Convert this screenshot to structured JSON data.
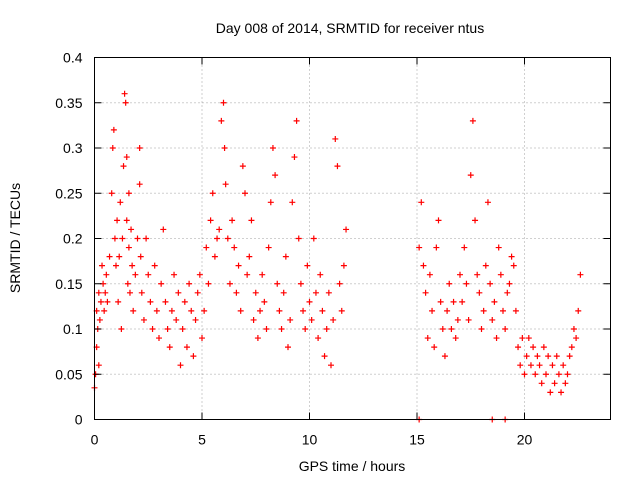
{
  "chart_data": {
    "type": "scatter",
    "title": "Day 008 of 2014, SRMTID for receiver ntus",
    "xlabel": "GPS time / hours",
    "ylabel": "SRMTID / TECUs",
    "xlim": [
      0,
      24
    ],
    "ylim": [
      0,
      0.4
    ],
    "xticks": [
      0,
      5,
      10,
      15,
      20
    ],
    "xtick_labels": [
      "0",
      "5",
      "10",
      "15",
      "20"
    ],
    "yticks": [
      0,
      0.05,
      0.1,
      0.15,
      0.2,
      0.25,
      0.3,
      0.35,
      0.4
    ],
    "ytick_labels": [
      "0",
      "0.05",
      "0.1",
      "0.15",
      "0.2",
      "0.25",
      "0.3",
      "0.35",
      "0.4"
    ],
    "grid": true,
    "series": [
      {
        "name": "SRMTID",
        "marker": "+",
        "color": "#ff0000",
        "x": [
          0.0,
          0.05,
          0.1,
          0.1,
          0.15,
          0.2,
          0.2,
          0.25,
          0.3,
          0.35,
          0.4,
          0.45,
          0.5,
          0.55,
          0.6,
          0.7,
          0.8,
          0.85,
          0.9,
          0.95,
          1.0,
          1.05,
          1.1,
          1.15,
          1.2,
          1.25,
          1.3,
          1.35,
          1.4,
          1.45,
          1.5,
          1.5,
          1.55,
          1.6,
          1.6,
          1.65,
          1.7,
          1.75,
          1.8,
          1.9,
          2.0,
          2.1,
          2.1,
          2.15,
          2.2,
          2.3,
          2.4,
          2.5,
          2.6,
          2.7,
          2.8,
          2.9,
          3.0,
          3.1,
          3.2,
          3.3,
          3.4,
          3.5,
          3.6,
          3.7,
          3.8,
          3.9,
          4.0,
          4.1,
          4.2,
          4.3,
          4.4,
          4.5,
          4.6,
          4.7,
          4.8,
          4.9,
          5.0,
          5.1,
          5.2,
          5.3,
          5.4,
          5.5,
          5.6,
          5.7,
          5.8,
          5.9,
          6.0,
          6.05,
          6.1,
          6.2,
          6.3,
          6.4,
          6.5,
          6.6,
          6.7,
          6.8,
          6.9,
          7.0,
          7.1,
          7.2,
          7.3,
          7.4,
          7.5,
          7.6,
          7.7,
          7.8,
          7.9,
          8.0,
          8.1,
          8.2,
          8.3,
          8.4,
          8.5,
          8.6,
          8.7,
          8.8,
          8.9,
          9.0,
          9.1,
          9.2,
          9.3,
          9.4,
          9.5,
          9.6,
          9.7,
          9.8,
          9.9,
          10.0,
          10.1,
          10.2,
          10.3,
          10.4,
          10.5,
          10.6,
          10.7,
          10.8,
          10.9,
          11.0,
          11.1,
          11.2,
          11.3,
          11.4,
          11.5,
          11.6,
          11.7,
          15.1,
          15.2,
          15.3,
          15.4,
          15.5,
          15.6,
          15.7,
          15.8,
          15.9,
          16.0,
          16.1,
          16.2,
          16.3,
          16.4,
          16.5,
          16.6,
          16.7,
          16.8,
          16.9,
          17.0,
          17.1,
          17.2,
          17.3,
          17.4,
          17.5,
          17.6,
          17.7,
          17.8,
          17.9,
          18.0,
          18.1,
          18.2,
          18.3,
          18.4,
          18.5,
          18.6,
          18.7,
          18.8,
          18.9,
          19.0,
          19.1,
          19.2,
          19.3,
          19.4,
          19.5,
          19.6,
          19.7,
          19.8,
          19.9,
          20.0,
          20.1,
          20.2,
          20.3,
          20.4,
          20.5,
          20.6,
          20.7,
          20.8,
          20.9,
          21.0,
          21.1,
          21.2,
          21.3,
          21.4,
          21.5,
          21.6,
          21.7,
          21.8,
          21.9,
          22.0,
          22.1,
          22.2,
          22.3,
          22.4,
          22.5,
          22.6,
          15.1,
          18.5,
          19.1
        ],
        "y": [
          0.035,
          0.05,
          0.08,
          0.12,
          0.1,
          0.06,
          0.14,
          0.11,
          0.13,
          0.17,
          0.15,
          0.12,
          0.14,
          0.16,
          0.13,
          0.18,
          0.25,
          0.3,
          0.32,
          0.2,
          0.17,
          0.22,
          0.13,
          0.18,
          0.24,
          0.1,
          0.2,
          0.28,
          0.36,
          0.35,
          0.29,
          0.22,
          0.15,
          0.25,
          0.19,
          0.14,
          0.21,
          0.17,
          0.12,
          0.16,
          0.2,
          0.3,
          0.26,
          0.18,
          0.14,
          0.11,
          0.2,
          0.16,
          0.13,
          0.1,
          0.17,
          0.12,
          0.09,
          0.15,
          0.21,
          0.13,
          0.1,
          0.08,
          0.12,
          0.16,
          0.11,
          0.14,
          0.06,
          0.1,
          0.13,
          0.08,
          0.15,
          0.12,
          0.07,
          0.11,
          0.14,
          0.16,
          0.09,
          0.12,
          0.19,
          0.15,
          0.22,
          0.25,
          0.18,
          0.2,
          0.21,
          0.33,
          0.35,
          0.3,
          0.26,
          0.2,
          0.15,
          0.22,
          0.19,
          0.14,
          0.17,
          0.12,
          0.28,
          0.25,
          0.16,
          0.18,
          0.22,
          0.11,
          0.14,
          0.09,
          0.12,
          0.16,
          0.13,
          0.1,
          0.19,
          0.24,
          0.3,
          0.27,
          0.15,
          0.12,
          0.1,
          0.14,
          0.18,
          0.08,
          0.11,
          0.24,
          0.29,
          0.33,
          0.2,
          0.15,
          0.12,
          0.1,
          0.17,
          0.13,
          0.11,
          0.2,
          0.14,
          0.09,
          0.16,
          0.12,
          0.07,
          0.1,
          0.14,
          0.06,
          0.11,
          0.31,
          0.28,
          0.15,
          0.12,
          0.17,
          0.21,
          0.19,
          0.24,
          0.17,
          0.14,
          0.09,
          0.16,
          0.12,
          0.08,
          0.19,
          0.22,
          0.13,
          0.1,
          0.07,
          0.12,
          0.15,
          0.1,
          0.13,
          0.09,
          0.11,
          0.16,
          0.13,
          0.19,
          0.15,
          0.11,
          0.27,
          0.33,
          0.22,
          0.16,
          0.14,
          0.1,
          0.12,
          0.17,
          0.24,
          0.15,
          0.11,
          0.13,
          0.09,
          0.19,
          0.16,
          0.12,
          0.1,
          0.14,
          0.15,
          0.18,
          0.17,
          0.12,
          0.08,
          0.06,
          0.09,
          0.05,
          0.07,
          0.09,
          0.06,
          0.08,
          0.05,
          0.07,
          0.06,
          0.04,
          0.08,
          0.05,
          0.07,
          0.03,
          0.06,
          0.04,
          0.07,
          0.05,
          0.03,
          0.06,
          0.04,
          0.05,
          0.07,
          0.08,
          0.1,
          0.09,
          0.12,
          0.16,
          0.0,
          0.0,
          0.0
        ]
      }
    ]
  }
}
